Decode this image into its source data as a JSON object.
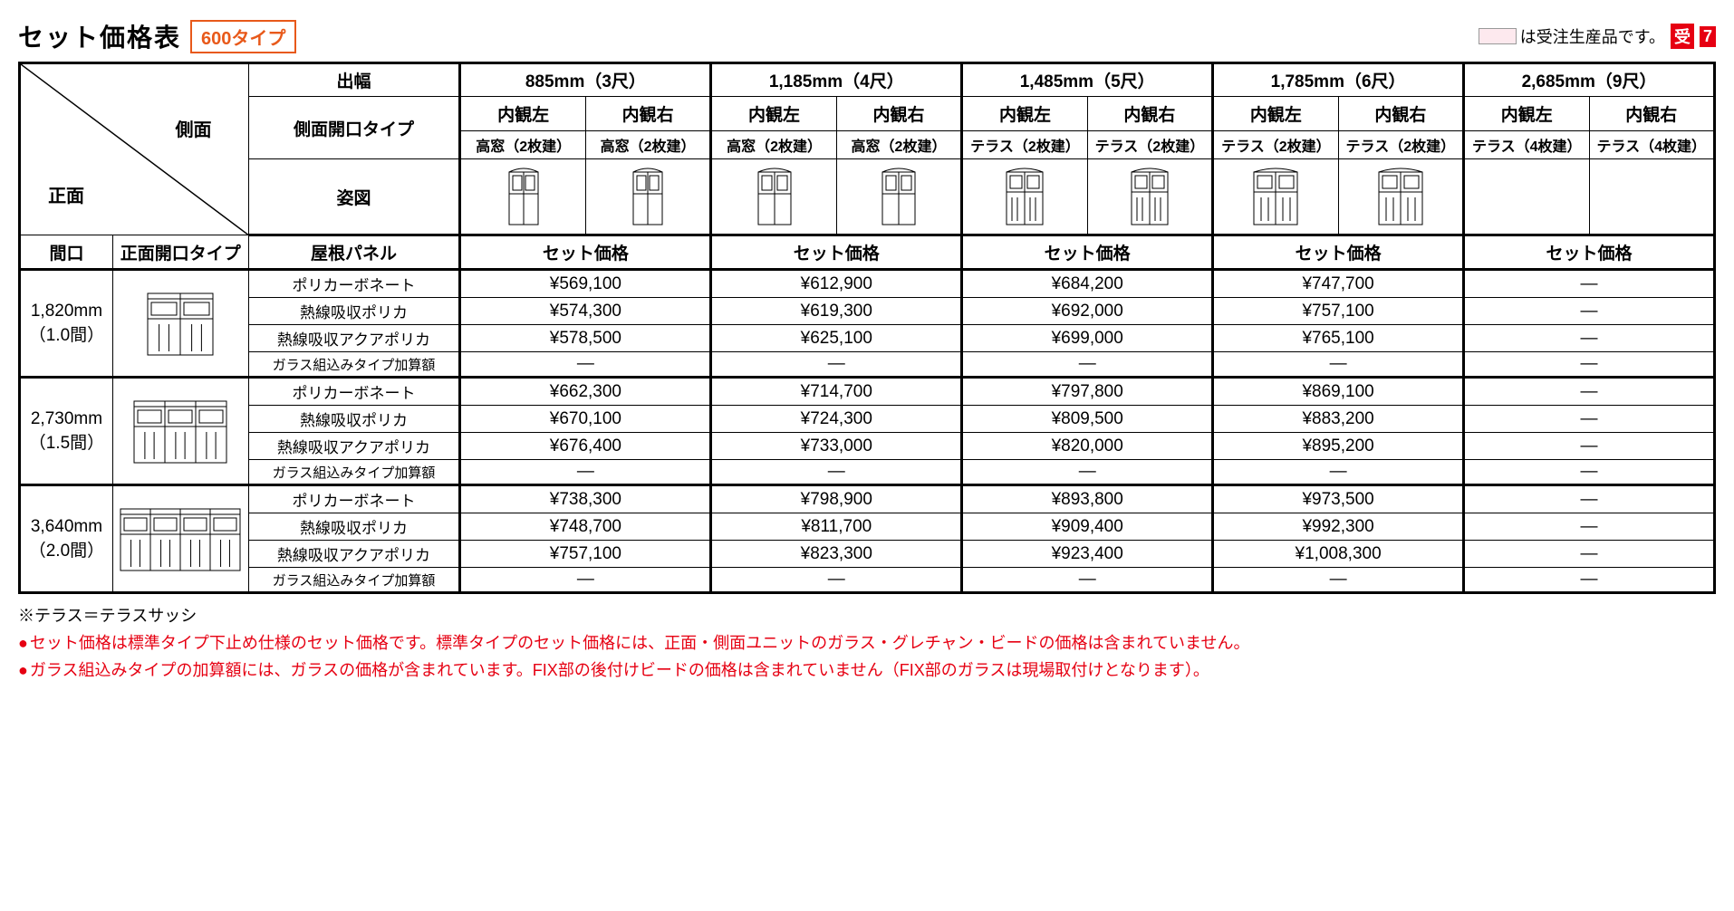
{
  "title": "セット価格表",
  "type_badge": "600タイプ",
  "legend_text": "は受注生産品です。",
  "legend_badge1": "受",
  "legend_badge2": "7",
  "header": {
    "side_label": "側面",
    "front_label": "正面",
    "depth_label": "出幅",
    "side_opening_label": "側面開口タイプ",
    "figure_label": "姿図",
    "opening_label": "間口",
    "front_opening_label": "正面開口タイプ",
    "roof_panel_label": "屋根パネル",
    "set_price_label": "セット価格",
    "view_left": "内観左",
    "view_right": "内観右"
  },
  "depth_columns": [
    {
      "label": "885mm（3尺）",
      "left_sub": "高窓（2枚建）",
      "right_sub": "高窓（2枚建）"
    },
    {
      "label": "1,185mm（4尺）",
      "left_sub": "高窓（2枚建）",
      "right_sub": "高窓（2枚建）"
    },
    {
      "label": "1,485mm（5尺）",
      "left_sub": "テラス（2枚建）",
      "right_sub": "テラス（2枚建）"
    },
    {
      "label": "1,785mm（6尺）",
      "left_sub": "テラス（2枚建）",
      "right_sub": "テラス（2枚建）"
    },
    {
      "label": "2,685mm（9尺）",
      "left_sub": "テラス（4枚建）",
      "right_sub": "テラス（4枚建）"
    }
  ],
  "panel_types": [
    "ポリカーボネート",
    "熱線吸収ポリカ",
    "熱線吸収アクアポリカ",
    "ガラス組込みタイプ加算額"
  ],
  "row_groups": [
    {
      "opening": "1,820mm\n（1.0間）",
      "prices": [
        [
          "¥569,100",
          "¥612,900",
          "¥684,200",
          "¥747,700",
          "—"
        ],
        [
          "¥574,300",
          "¥619,300",
          "¥692,000",
          "¥757,100",
          "—"
        ],
        [
          "¥578,500",
          "¥625,100",
          "¥699,000",
          "¥765,100",
          "—"
        ],
        [
          "—",
          "—",
          "—",
          "—",
          "—"
        ]
      ]
    },
    {
      "opening": "2,730mm\n（1.5間）",
      "prices": [
        [
          "¥662,300",
          "¥714,700",
          "¥797,800",
          "¥869,100",
          "—"
        ],
        [
          "¥670,100",
          "¥724,300",
          "¥809,500",
          "¥883,200",
          "—"
        ],
        [
          "¥676,400",
          "¥733,000",
          "¥820,000",
          "¥895,200",
          "—"
        ],
        [
          "—",
          "—",
          "—",
          "—",
          "—"
        ]
      ]
    },
    {
      "opening": "3,640mm\n（2.0間）",
      "prices": [
        [
          "¥738,300",
          "¥798,900",
          "¥893,800",
          "¥973,500",
          "—"
        ],
        [
          "¥748,700",
          "¥811,700",
          "¥909,400",
          "¥992,300",
          "—"
        ],
        [
          "¥757,100",
          "¥823,300",
          "¥923,400",
          "¥1,008,300",
          "—"
        ],
        [
          "—",
          "—",
          "—",
          "—",
          "—"
        ]
      ]
    }
  ],
  "footnotes": {
    "note1": "※テラス＝テラスサッシ",
    "note2": "セット価格は標準タイプ下止め仕様のセット価格です。標準タイプのセット価格には、正面・側面ユニットのガラス・グレチャン・ビードの価格は含まれていません。",
    "note3": "ガラス組込みタイプの加算額には、ガラスの価格が含まれています。FIX部の後付けビードの価格は含まれていません（FIX部のガラスは現場取付けとなります）。"
  },
  "colors": {
    "accent": "#e8591a",
    "red": "#e60012",
    "swatch": "#fde9ee"
  }
}
